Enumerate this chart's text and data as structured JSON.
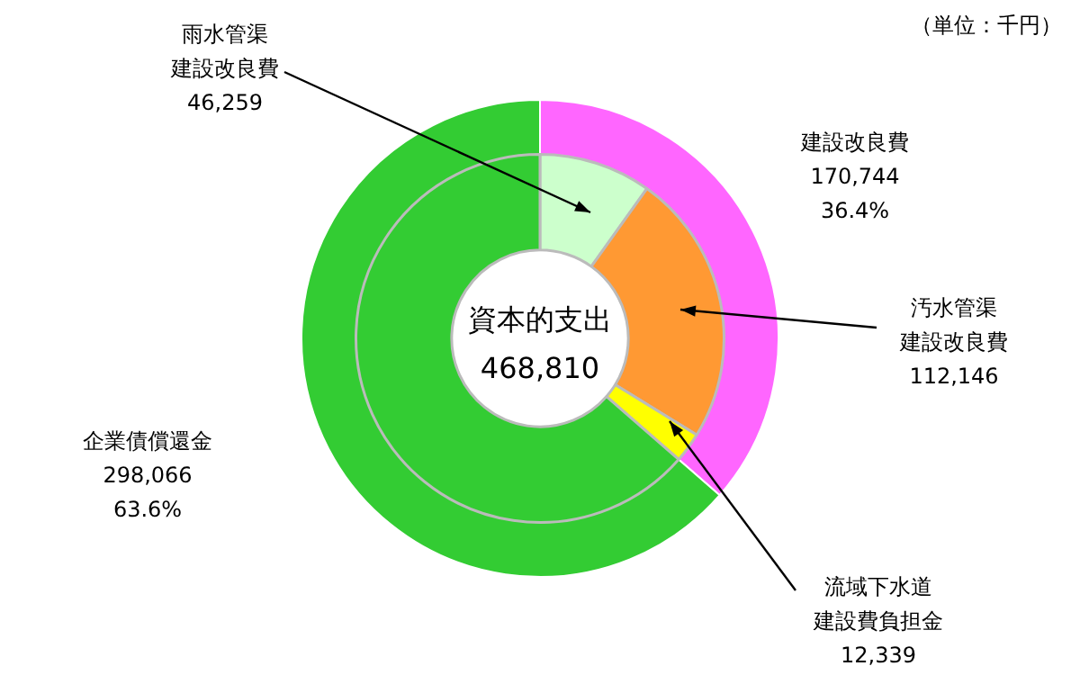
{
  "chart_data": [
    {
      "type": "donut",
      "categories": [
        "建設改良費",
        "企業債償還金"
      ],
      "values": [
        170744,
        298066
      ],
      "colors": [
        "#ff66ff",
        "#33cc33"
      ],
      "value_labels": [
        "170,744\n36.4%",
        "298,066\n63.6%"
      ]
    },
    {
      "type": "donut",
      "title": "資本的支出",
      "categories": [
        "雨水管渠建設改良費",
        "汚水管渠建設改良費",
        "流域下水道建設費負担金",
        null
      ],
      "values": [
        46259,
        112146,
        12339,
        298066
      ],
      "colors": [
        "#ccffcc",
        "#ff9933",
        "#ffff00",
        "#33cc33"
      ],
      "value_labels": [
        "46,259",
        "112,146",
        "12,339",
        null
      ],
      "annotations": [
        "468,810",
        "（単位：千円）"
      ]
    }
  ]
}
